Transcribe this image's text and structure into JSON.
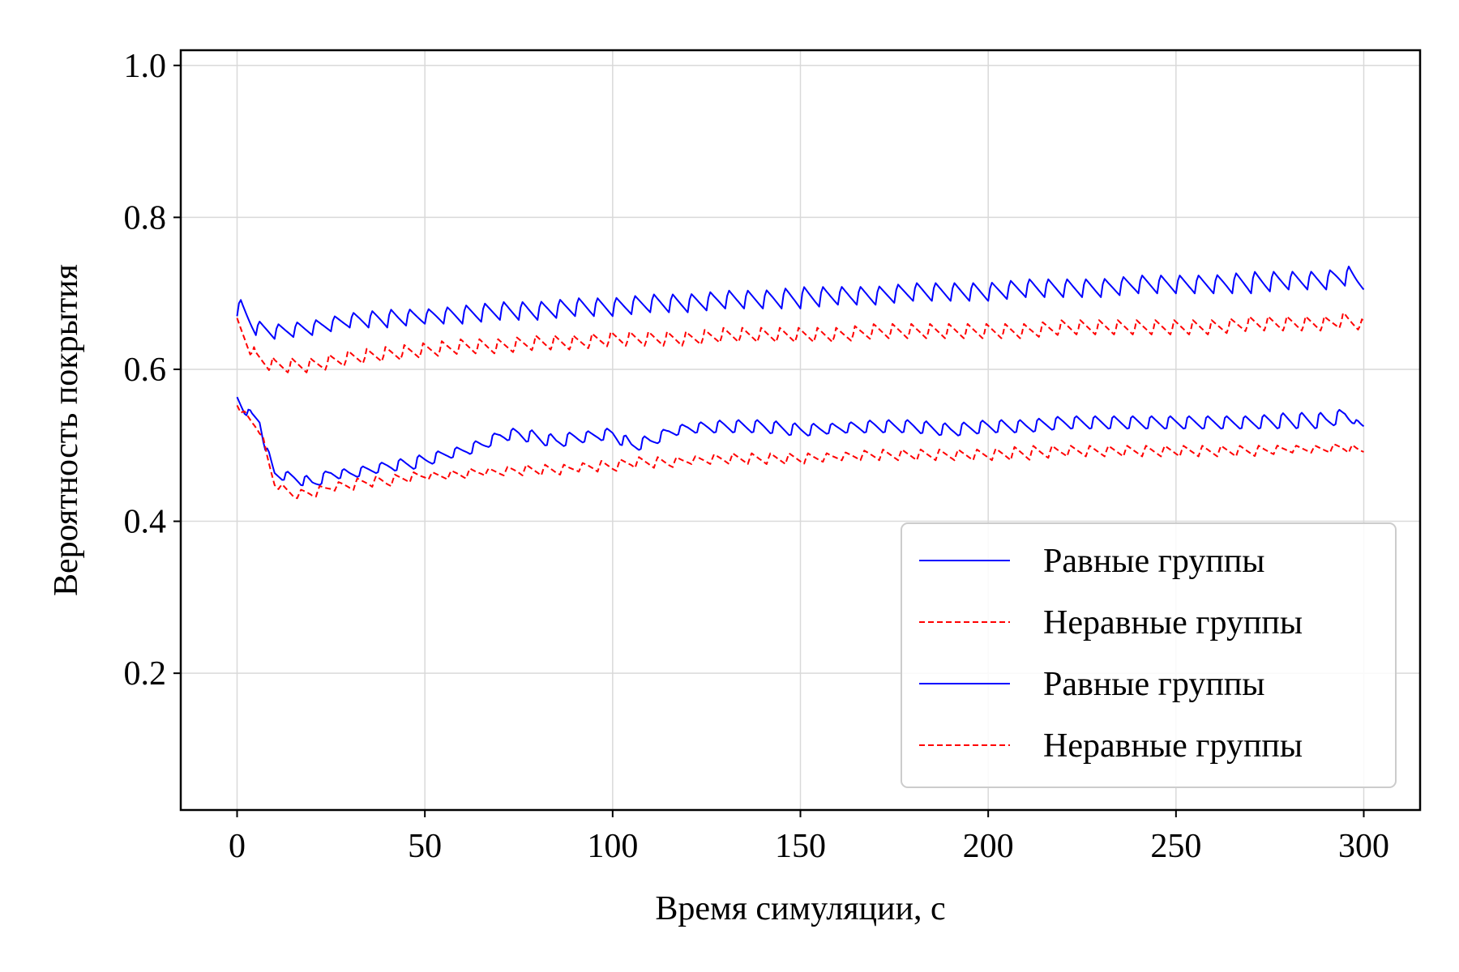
{
  "chart_data": {
    "type": "line",
    "title": "",
    "xlabel": "Время симуляции, с",
    "ylabel": "Вероятность покрытия",
    "xlim": [
      -15,
      315
    ],
    "ylim": [
      0.02,
      1.02
    ],
    "xticks": [
      0,
      50,
      100,
      150,
      200,
      250,
      300
    ],
    "xtick_labels": [
      "0",
      "50",
      "100",
      "150",
      "200",
      "250",
      "300"
    ],
    "yticks": [
      0.2,
      0.4,
      0.6,
      0.8,
      1.0
    ],
    "ytick_labels": [
      "0.2",
      "0.4",
      "0.6",
      "0.8",
      "1.0"
    ],
    "grid": true,
    "legend_position": "lower-right",
    "series": [
      {
        "name": "Равные группы",
        "color": "#0000ff",
        "style": "solid",
        "x": [
          0,
          5,
          10,
          20,
          30,
          40,
          50,
          60,
          70,
          80,
          90,
          100,
          110,
          120,
          130,
          140,
          150,
          160,
          170,
          180,
          190,
          200,
          210,
          220,
          230,
          240,
          250,
          260,
          270,
          280,
          290,
          295,
          300
        ],
        "upper": [
          0.7,
          0.665,
          0.66,
          0.665,
          0.675,
          0.68,
          0.68,
          0.685,
          0.69,
          0.69,
          0.695,
          0.695,
          0.7,
          0.7,
          0.705,
          0.705,
          0.71,
          0.71,
          0.71,
          0.715,
          0.715,
          0.715,
          0.72,
          0.72,
          0.72,
          0.725,
          0.725,
          0.725,
          0.73,
          0.73,
          0.73,
          0.74,
          0.725
        ],
        "lower": [
          0.67,
          0.645,
          0.64,
          0.645,
          0.655,
          0.655,
          0.66,
          0.66,
          0.665,
          0.665,
          0.67,
          0.67,
          0.675,
          0.675,
          0.68,
          0.68,
          0.68,
          0.685,
          0.685,
          0.69,
          0.69,
          0.69,
          0.695,
          0.695,
          0.695,
          0.7,
          0.7,
          0.7,
          0.7,
          0.705,
          0.705,
          0.71,
          0.705
        ]
      },
      {
        "name": "Неравные группы",
        "color": "#ff0000",
        "style": "dashed",
        "x": [
          0,
          5,
          10,
          20,
          30,
          40,
          50,
          60,
          70,
          80,
          90,
          100,
          110,
          120,
          130,
          140,
          150,
          160,
          170,
          180,
          190,
          200,
          210,
          220,
          230,
          240,
          250,
          260,
          270,
          280,
          290,
          295,
          300
        ],
        "upper": [
          0.67,
          0.625,
          0.615,
          0.615,
          0.625,
          0.63,
          0.635,
          0.64,
          0.64,
          0.645,
          0.645,
          0.65,
          0.65,
          0.65,
          0.655,
          0.655,
          0.655,
          0.655,
          0.66,
          0.66,
          0.66,
          0.66,
          0.66,
          0.665,
          0.665,
          0.665,
          0.665,
          0.665,
          0.67,
          0.67,
          0.67,
          0.675,
          0.665
        ],
        "lower": [
          0.65,
          0.605,
          0.595,
          0.595,
          0.605,
          0.61,
          0.615,
          0.62,
          0.62,
          0.625,
          0.625,
          0.63,
          0.63,
          0.63,
          0.635,
          0.635,
          0.635,
          0.635,
          0.64,
          0.64,
          0.64,
          0.64,
          0.64,
          0.645,
          0.645,
          0.645,
          0.645,
          0.645,
          0.65,
          0.65,
          0.65,
          0.655,
          0.65
        ]
      },
      {
        "name": "Равные группы",
        "color": "#0000ff",
        "style": "solid",
        "x": [
          0,
          2,
          4,
          6,
          8,
          10,
          15,
          20,
          25,
          30,
          35,
          40,
          45,
          50,
          55,
          60,
          65,
          70,
          75,
          80,
          85,
          90,
          95,
          100,
          105,
          110,
          115,
          120,
          130,
          140,
          150,
          160,
          170,
          180,
          190,
          200,
          210,
          220,
          230,
          240,
          250,
          260,
          270,
          280,
          290,
          295,
          300
        ],
        "upper": [
          0.57,
          0.555,
          0.545,
          0.54,
          0.5,
          0.47,
          0.465,
          0.46,
          0.47,
          0.47,
          0.475,
          0.48,
          0.485,
          0.49,
          0.495,
          0.5,
          0.51,
          0.52,
          0.525,
          0.52,
          0.515,
          0.52,
          0.52,
          0.525,
          0.51,
          0.515,
          0.525,
          0.53,
          0.535,
          0.535,
          0.53,
          0.53,
          0.535,
          0.535,
          0.53,
          0.535,
          0.535,
          0.54,
          0.54,
          0.54,
          0.54,
          0.54,
          0.54,
          0.545,
          0.545,
          0.55,
          0.525
        ],
        "lower": [
          0.555,
          0.54,
          0.53,
          0.525,
          0.48,
          0.455,
          0.45,
          0.44,
          0.455,
          0.455,
          0.46,
          0.465,
          0.465,
          0.47,
          0.48,
          0.485,
          0.49,
          0.505,
          0.505,
          0.5,
          0.495,
          0.5,
          0.505,
          0.505,
          0.49,
          0.495,
          0.51,
          0.515,
          0.515,
          0.515,
          0.51,
          0.515,
          0.515,
          0.515,
          0.51,
          0.515,
          0.515,
          0.52,
          0.52,
          0.52,
          0.52,
          0.52,
          0.52,
          0.52,
          0.52,
          0.53,
          0.525
        ]
      },
      {
        "name": "Неравные группы",
        "color": "#ff0000",
        "style": "dashed",
        "x": [
          0,
          2,
          4,
          6,
          8,
          10,
          15,
          20,
          25,
          30,
          35,
          40,
          45,
          50,
          55,
          60,
          65,
          70,
          75,
          80,
          85,
          90,
          95,
          100,
          105,
          110,
          115,
          120,
          130,
          140,
          150,
          160,
          170,
          180,
          190,
          200,
          210,
          220,
          230,
          240,
          250,
          260,
          270,
          280,
          290,
          295,
          300
        ],
        "upper": [
          0.56,
          0.545,
          0.535,
          0.53,
          0.49,
          0.455,
          0.44,
          0.445,
          0.45,
          0.455,
          0.46,
          0.46,
          0.465,
          0.465,
          0.465,
          0.47,
          0.47,
          0.47,
          0.475,
          0.475,
          0.475,
          0.475,
          0.48,
          0.48,
          0.485,
          0.485,
          0.485,
          0.485,
          0.49,
          0.49,
          0.49,
          0.49,
          0.495,
          0.495,
          0.495,
          0.495,
          0.5,
          0.5,
          0.5,
          0.5,
          0.5,
          0.5,
          0.5,
          0.5,
          0.5,
          0.505,
          0.495
        ],
        "lower": [
          0.55,
          0.535,
          0.525,
          0.515,
          0.475,
          0.445,
          0.43,
          0.43,
          0.44,
          0.44,
          0.445,
          0.445,
          0.45,
          0.455,
          0.455,
          0.455,
          0.46,
          0.46,
          0.46,
          0.46,
          0.46,
          0.465,
          0.465,
          0.465,
          0.47,
          0.47,
          0.47,
          0.475,
          0.475,
          0.475,
          0.475,
          0.48,
          0.48,
          0.48,
          0.48,
          0.48,
          0.48,
          0.485,
          0.485,
          0.485,
          0.485,
          0.485,
          0.485,
          0.49,
          0.49,
          0.49,
          0.49
        ]
      }
    ],
    "sawtooth_period": 5
  }
}
